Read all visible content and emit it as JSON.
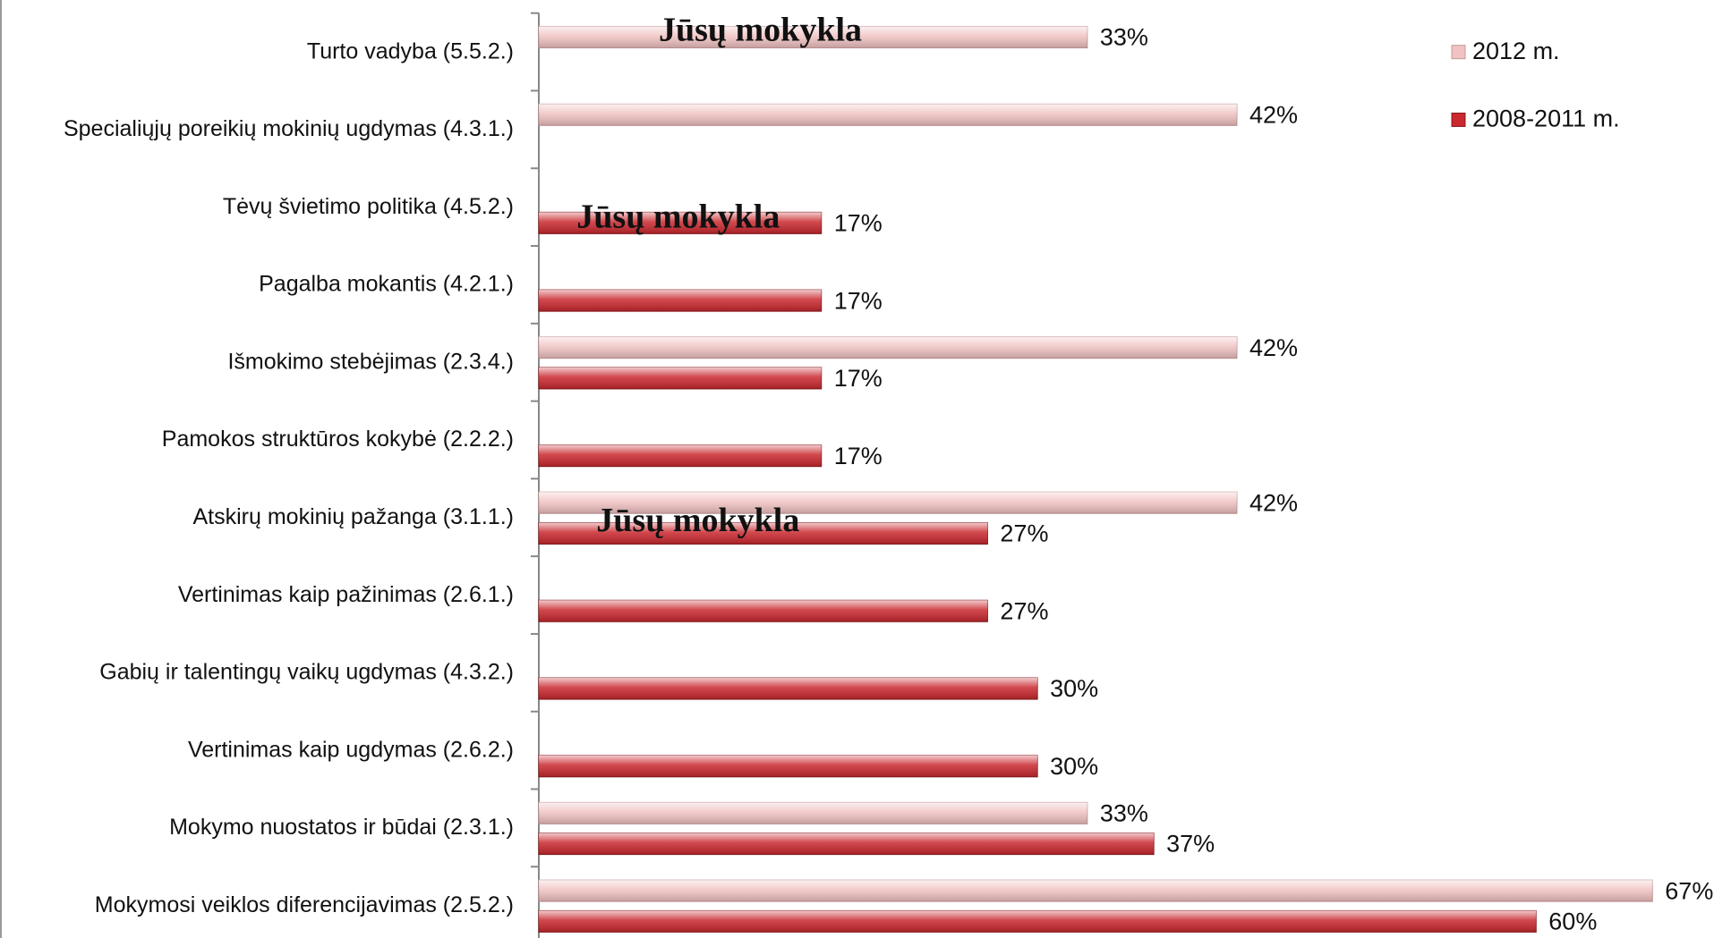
{
  "chart_data": {
    "type": "bar",
    "orientation": "horizontal",
    "categories": [
      "Turto vadyba (5.5.2.)",
      "Specialiųjų poreikių mokinių ugdymas (4.3.1.)",
      "Tėvų švietimo politika (4.5.2.)",
      "Pagalba mokantis (4.2.1.)",
      "Išmokimo stebėjimas (2.3.4.)",
      "Pamokos struktūros kokybė (2.2.2.)",
      "Atskirų mokinių pažanga (3.1.1.)",
      "Vertinimas kaip pažinimas (2.6.1.)",
      "Gabių ir talentingų vaikų ugdymas (4.3.2.)",
      "Vertinimas kaip ugdymas (2.6.2.)",
      "Mokymo nuostatos ir būdai (2.3.1.)",
      "Mokymosi veiklos diferencijavimas (2.5.2.)"
    ],
    "series": [
      {
        "name": "2012 m.",
        "color": "#f0c2c2",
        "values": [
          33,
          42,
          null,
          null,
          42,
          null,
          42,
          null,
          null,
          null,
          33,
          67
        ],
        "value_labels": [
          "33%",
          "42%",
          null,
          null,
          "42%",
          null,
          "42%",
          null,
          null,
          null,
          "33%",
          "67%"
        ]
      },
      {
        "name": "2008-2011 m.",
        "color": "#c9282e",
        "values": [
          null,
          null,
          17,
          17,
          17,
          17,
          27,
          27,
          30,
          30,
          37,
          60
        ],
        "value_labels": [
          null,
          null,
          "17%",
          "17%",
          "17%",
          "17%",
          "27%",
          "27%",
          "30%",
          "30%",
          "37%",
          "60%"
        ]
      }
    ],
    "xlim": [
      0,
      70
    ],
    "annotations": [
      "Jūsų mokykla",
      "Jūsų mokykla",
      "Jūsų mokykla"
    ],
    "legend": "top-right"
  }
}
